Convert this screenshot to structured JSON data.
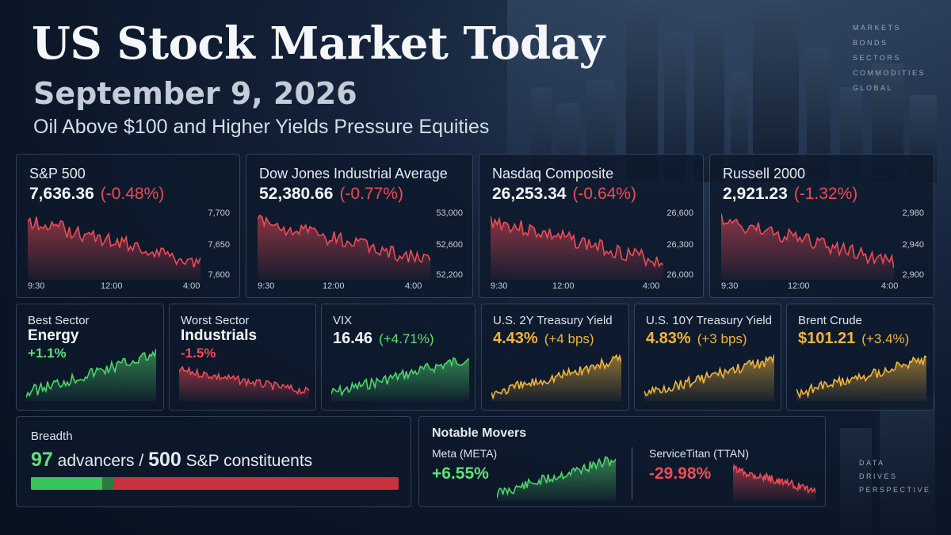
{
  "header": {
    "title": "US Stock Market Today",
    "date": "September 9, 2026",
    "subtitle": "Oil Above $100 and Higher Yields Pressure Equities"
  },
  "nav": [
    "MARKETS",
    "BONDS",
    "SECTORS",
    "COMMODITIES",
    "GLOBAL"
  ],
  "tagline": [
    "DATA",
    "DRIVES",
    "PERSPECTIVE"
  ],
  "colors": {
    "down": "#ef4a55",
    "up": "#5fe07a",
    "yield": "#f2b53a",
    "background": "#0b1627"
  },
  "indices": [
    {
      "name": "S&P 500",
      "value": "7,636.36",
      "change": "(-0.48%)",
      "y_ticks": [
        "7,700",
        "7,650",
        "7,600"
      ],
      "x_ticks": [
        "9:30",
        "12:00",
        "4:00"
      ]
    },
    {
      "name": "Dow Jones Industrial Average",
      "value": "52,380.66",
      "change": "(-0.77%)",
      "y_ticks": [
        "53,000",
        "52,600",
        "52,200"
      ],
      "x_ticks": [
        "9:30",
        "12:00",
        "4:00"
      ]
    },
    {
      "name": "Nasdaq Composite",
      "value": "26,253.34",
      "change": "(-0.64%)",
      "y_ticks": [
        "26,600",
        "26,300",
        "26,000"
      ],
      "x_ticks": [
        "9:30",
        "12:00",
        "4:00"
      ]
    },
    {
      "name": "Russell 2000",
      "value": "2,921.23",
      "change": "(-1.32%)",
      "y_ticks": [
        "2,980",
        "2,940",
        "2,900"
      ],
      "x_ticks": [
        "9:30",
        "12:00",
        "4:00"
      ]
    }
  ],
  "small_cards": [
    {
      "label": "Best Sector",
      "name": "Energy",
      "pct": "+1.1%",
      "trend": "up"
    },
    {
      "label": "Worst Sector",
      "name": "Industrials",
      "pct": "-1.5%",
      "trend": "down"
    },
    {
      "label": "VIX",
      "value": "16.46",
      "change": "(+4.71%)",
      "trend": "up"
    },
    {
      "label": "U.S. 2Y Treasury Yield",
      "value": "4.43%",
      "change": "(+4 bps)",
      "trend": "yield"
    },
    {
      "label": "U.S. 10Y Treasury Yield",
      "value": "4.83%",
      "change": "(+3 bps)",
      "trend": "yield"
    },
    {
      "label": "Brent Crude",
      "value": "$101.21",
      "change": "(+3.4%)",
      "trend": "yield"
    }
  ],
  "breadth": {
    "title": "Breadth",
    "advancers": "97",
    "advancers_text": "advancers /",
    "total": "500",
    "total_text": "S&P constituents",
    "advancers_fraction": 0.194
  },
  "movers": {
    "title": "Notable Movers",
    "items": [
      {
        "name": "Meta (META)",
        "pct": "+6.55%",
        "trend": "up"
      },
      {
        "name": "ServiceTitan (TTAN)",
        "pct": "-29.98%",
        "trend": "down"
      }
    ]
  }
}
